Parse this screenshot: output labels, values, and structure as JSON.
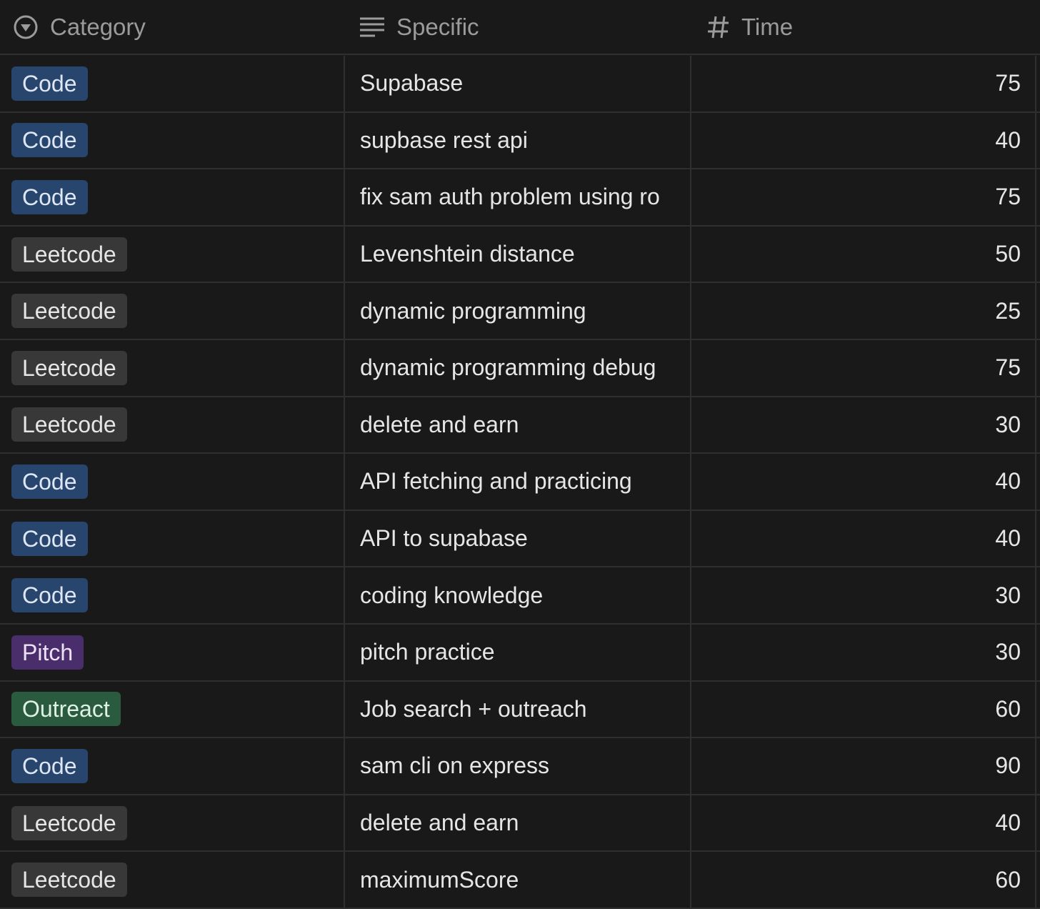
{
  "columns": [
    {
      "label": "Category",
      "icon": "select-icon"
    },
    {
      "label": "Specific",
      "icon": "text-lines-icon"
    },
    {
      "label": "Time",
      "icon": "number-hash-icon"
    }
  ],
  "tag_colors": {
    "Code": {
      "bg": "#28456e",
      "fg": "#dde6f2"
    },
    "Leetcode": {
      "bg": "#383838",
      "fg": "#e6e6e6"
    },
    "Pitch": {
      "bg": "#4a2e6c",
      "fg": "#ece2f5"
    },
    "Outreact": {
      "bg": "#2b5b3e",
      "fg": "#dff0e4"
    }
  },
  "rows": [
    {
      "category": "Code",
      "specific": "Supabase",
      "time": "75"
    },
    {
      "category": "Code",
      "specific": "supbase rest api",
      "time": "40"
    },
    {
      "category": "Code",
      "specific": "fix sam auth problem using ro",
      "time": "75"
    },
    {
      "category": "Leetcode",
      "specific": "Levenshtein distance",
      "time": "50"
    },
    {
      "category": "Leetcode",
      "specific": "dynamic programming",
      "time": "25"
    },
    {
      "category": "Leetcode",
      "specific": "dynamic programming debug",
      "time": "75"
    },
    {
      "category": "Leetcode",
      "specific": "delete and earn",
      "time": "30"
    },
    {
      "category": "Code",
      "specific": "API fetching and practicing",
      "time": "40"
    },
    {
      "category": "Code",
      "specific": "API to supabase",
      "time": "40"
    },
    {
      "category": "Code",
      "specific": "coding knowledge",
      "time": "30"
    },
    {
      "category": "Pitch",
      "specific": "pitch practice",
      "time": "30"
    },
    {
      "category": "Outreact",
      "specific": "Job search + outreach",
      "time": "60"
    },
    {
      "category": "Code",
      "specific": "sam cli on express",
      "time": "90"
    },
    {
      "category": "Leetcode",
      "specific": "delete and earn",
      "time": "40"
    },
    {
      "category": "Leetcode",
      "specific": "maximumScore",
      "time": "60"
    }
  ]
}
